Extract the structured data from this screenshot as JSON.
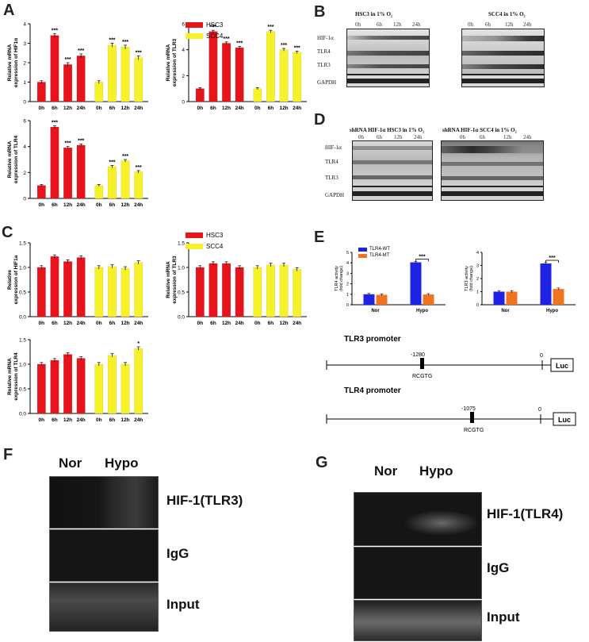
{
  "panels": {
    "A": "A",
    "B": "B",
    "C": "C",
    "D": "D",
    "E": "E",
    "F": "F",
    "G": "G"
  },
  "legend": {
    "hsc3": "HSC3",
    "scc4": "SCC4"
  },
  "colors": {
    "hsc3": "#e8141b",
    "scc4": "#f7f12a",
    "tlr4_wt": "#1f22e0",
    "tlr4_mt": "#f07322"
  },
  "time_ticks": [
    "0h",
    "6h",
    "12h",
    "24h"
  ],
  "chart_data": [
    {
      "type": "bar",
      "panel": "A",
      "ylabel": "Relative mRNA expression of HIF1α",
      "categories": [
        "0h",
        "6h",
        "12h",
        "24h"
      ],
      "ylim": [
        0,
        4
      ],
      "yticks": [
        0,
        1,
        2,
        3,
        4
      ],
      "series": [
        {
          "name": "HSC3",
          "values": [
            1.0,
            3.4,
            1.9,
            2.35
          ],
          "sig": [
            "",
            "***",
            "***",
            "***"
          ]
        },
        {
          "name": "SCC4",
          "values": [
            1.0,
            2.9,
            2.8,
            2.25
          ],
          "sig": [
            "",
            "***",
            "***",
            "***"
          ]
        }
      ]
    },
    {
      "type": "bar",
      "panel": "A",
      "ylabel": "Relative mRNA expression of TLR3",
      "categories": [
        "0h",
        "6h",
        "12h",
        "24h"
      ],
      "ylim": [
        0,
        6
      ],
      "yticks": [
        0,
        2,
        4,
        6
      ],
      "series": [
        {
          "name": "HSC3",
          "values": [
            1.0,
            5.4,
            4.5,
            4.15
          ],
          "sig": [
            "",
            "***",
            "***",
            "***"
          ]
        },
        {
          "name": "SCC4",
          "values": [
            1.0,
            5.4,
            4.0,
            3.8
          ],
          "sig": [
            "",
            "***",
            "***",
            "***"
          ]
        }
      ]
    },
    {
      "type": "bar",
      "panel": "A",
      "ylabel": "Relative mRNA expression of TLR4",
      "categories": [
        "0h",
        "6h",
        "12h",
        "24h"
      ],
      "ylim": [
        0,
        6
      ],
      "yticks": [
        0,
        2,
        4,
        6
      ],
      "series": [
        {
          "name": "HSC3",
          "values": [
            1.0,
            5.5,
            3.9,
            4.1
          ],
          "sig": [
            "",
            "***",
            "***",
            "***"
          ]
        },
        {
          "name": "SCC4",
          "values": [
            1.0,
            2.45,
            2.9,
            2.05
          ],
          "sig": [
            "",
            "***",
            "***",
            "***"
          ]
        }
      ]
    },
    {
      "type": "bar",
      "panel": "C",
      "ylabel": "Relative expression of HIF1a",
      "categories": [
        "0h",
        "6h",
        "12h",
        "24h"
      ],
      "ylim": [
        0,
        1.5
      ],
      "yticks": [
        0.0,
        0.5,
        1.0,
        1.5
      ],
      "series": [
        {
          "name": "HSC3",
          "values": [
            1.0,
            1.22,
            1.12,
            1.2
          ],
          "sig": [
            "",
            "",
            "",
            ""
          ]
        },
        {
          "name": "SCC4",
          "values": [
            1.0,
            1.02,
            0.98,
            1.1
          ],
          "sig": [
            "",
            "",
            "",
            ""
          ]
        }
      ]
    },
    {
      "type": "bar",
      "panel": "C",
      "ylabel": "Relative mRNA expression of TLR3",
      "categories": [
        "0h",
        "6h",
        "12h",
        "24h"
      ],
      "ylim": [
        0,
        1.5
      ],
      "yticks": [
        0.0,
        0.5,
        1.0,
        1.5
      ],
      "series": [
        {
          "name": "HSC3",
          "values": [
            1.0,
            1.08,
            1.08,
            1.0
          ],
          "sig": [
            "",
            "",
            "",
            ""
          ]
        },
        {
          "name": "SCC4",
          "values": [
            1.0,
            1.05,
            1.05,
            0.96
          ],
          "sig": [
            "",
            "",
            "",
            ""
          ]
        }
      ]
    },
    {
      "type": "bar",
      "panel": "C",
      "ylabel": "Relative mRNA expression of TLR4",
      "categories": [
        "0h",
        "6h",
        "12h",
        "24h"
      ],
      "ylim": [
        0,
        1.5
      ],
      "yticks": [
        0.0,
        0.5,
        1.0,
        1.5
      ],
      "series": [
        {
          "name": "HSC3",
          "values": [
            1.0,
            1.08,
            1.2,
            1.12
          ],
          "sig": [
            "",
            "",
            "",
            ""
          ]
        },
        {
          "name": "SCC4",
          "values": [
            1.0,
            1.18,
            1.0,
            1.32
          ],
          "sig": [
            "",
            "",
            "",
            "*"
          ]
        }
      ]
    },
    {
      "type": "bar",
      "panel": "E",
      "ylabel": "TLR4 activity (fold change)",
      "categories": [
        "Nor",
        "Hypo"
      ],
      "ylim": [
        0,
        5
      ],
      "yticks": [
        0,
        1,
        2,
        3,
        4,
        5
      ],
      "series": [
        {
          "name": "TLR4-WT",
          "values": [
            1.0,
            4.05
          ]
        },
        {
          "name": "TLR4-MT",
          "values": [
            0.95,
            0.98
          ]
        }
      ],
      "sig_bracket": "***"
    },
    {
      "type": "bar",
      "panel": "E",
      "ylabel": "TLR3 activity (fold change)",
      "categories": [
        "Nor",
        "Hypo"
      ],
      "ylim": [
        0,
        4
      ],
      "yticks": [
        0,
        1,
        2,
        3,
        4
      ],
      "series": [
        {
          "name": "TLR4-WT",
          "values": [
            1.0,
            3.15
          ]
        },
        {
          "name": "TLR4-MT",
          "values": [
            1.0,
            1.2
          ]
        }
      ],
      "sig_bracket": "***"
    }
  ],
  "legend_e": {
    "wt": "TLR4-WT",
    "mt": "TLR4-MT"
  },
  "promoters": {
    "tlr3": {
      "title": "TLR3 promoter",
      "site": "-1280",
      "zero": "0",
      "motif": "RCGTG",
      "reporter": "Luc"
    },
    "tlr4": {
      "title": "TLR4 promoter",
      "site": "-1075",
      "zero": "0",
      "motif": "RCGTG",
      "reporter": "Luc"
    }
  },
  "western_b": {
    "left_title": "HSC3 in 1% O₂",
    "right_title": "SCC4 in 1% O₂",
    "rows": [
      "HIF-1α",
      "TLR4",
      "TLR3",
      "GAPDH"
    ]
  },
  "western_d": {
    "left_title": "shRNA HIF-1α  HSC3 in 1% O₂",
    "right_title": "shRNA HIF-1α  SCC4 in 1% O₂",
    "rows": [
      "HIF-1α",
      "TLR4",
      "TLR3",
      "GAPDH"
    ]
  },
  "gel_f": {
    "cols": [
      "Nor",
      "Hypo"
    ],
    "rows": [
      "HIF-1(TLR3)",
      "IgG",
      "Input"
    ]
  },
  "gel_g": {
    "cols": [
      "Nor",
      "Hypo"
    ],
    "rows": [
      "HIF-1(TLR4)",
      "IgG",
      "Input"
    ]
  }
}
